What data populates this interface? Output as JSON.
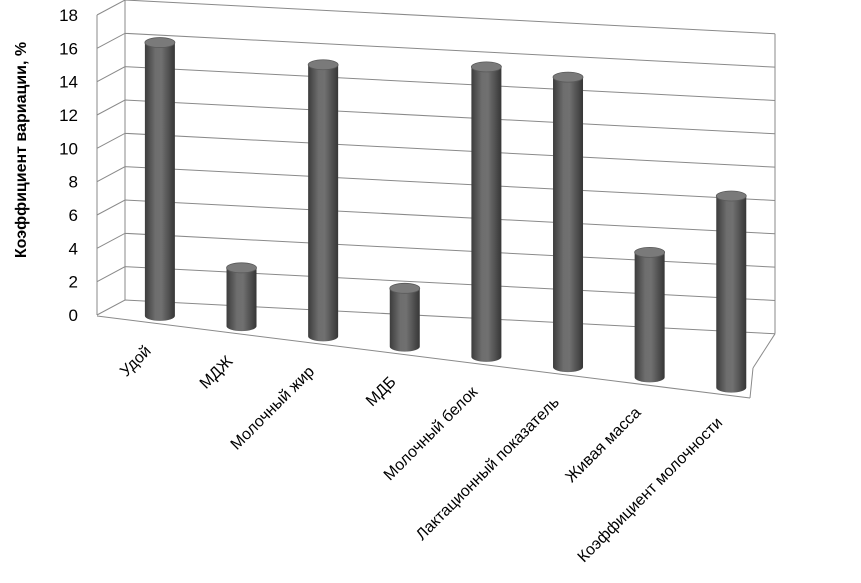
{
  "chart_data": {
    "type": "bar",
    "style": "3d-cylinder",
    "ylabel": "Коэффициент вариации, %",
    "xlabel": "",
    "ylim": [
      0,
      18
    ],
    "y_ticks": [
      0,
      2,
      4,
      6,
      8,
      10,
      12,
      14,
      16,
      18
    ],
    "grid": true,
    "categories": [
      "Удой",
      "МДЖ",
      "Молочный жир",
      "МДБ",
      "Молочный белок",
      "Лактационный показатель",
      "Живая масса",
      "Коэффициент молочности"
    ],
    "values": [
      16.4,
      3.5,
      16.3,
      3.5,
      17.4,
      17.4,
      7.5,
      11.5
    ],
    "bar_color": "#5e5e5e"
  }
}
